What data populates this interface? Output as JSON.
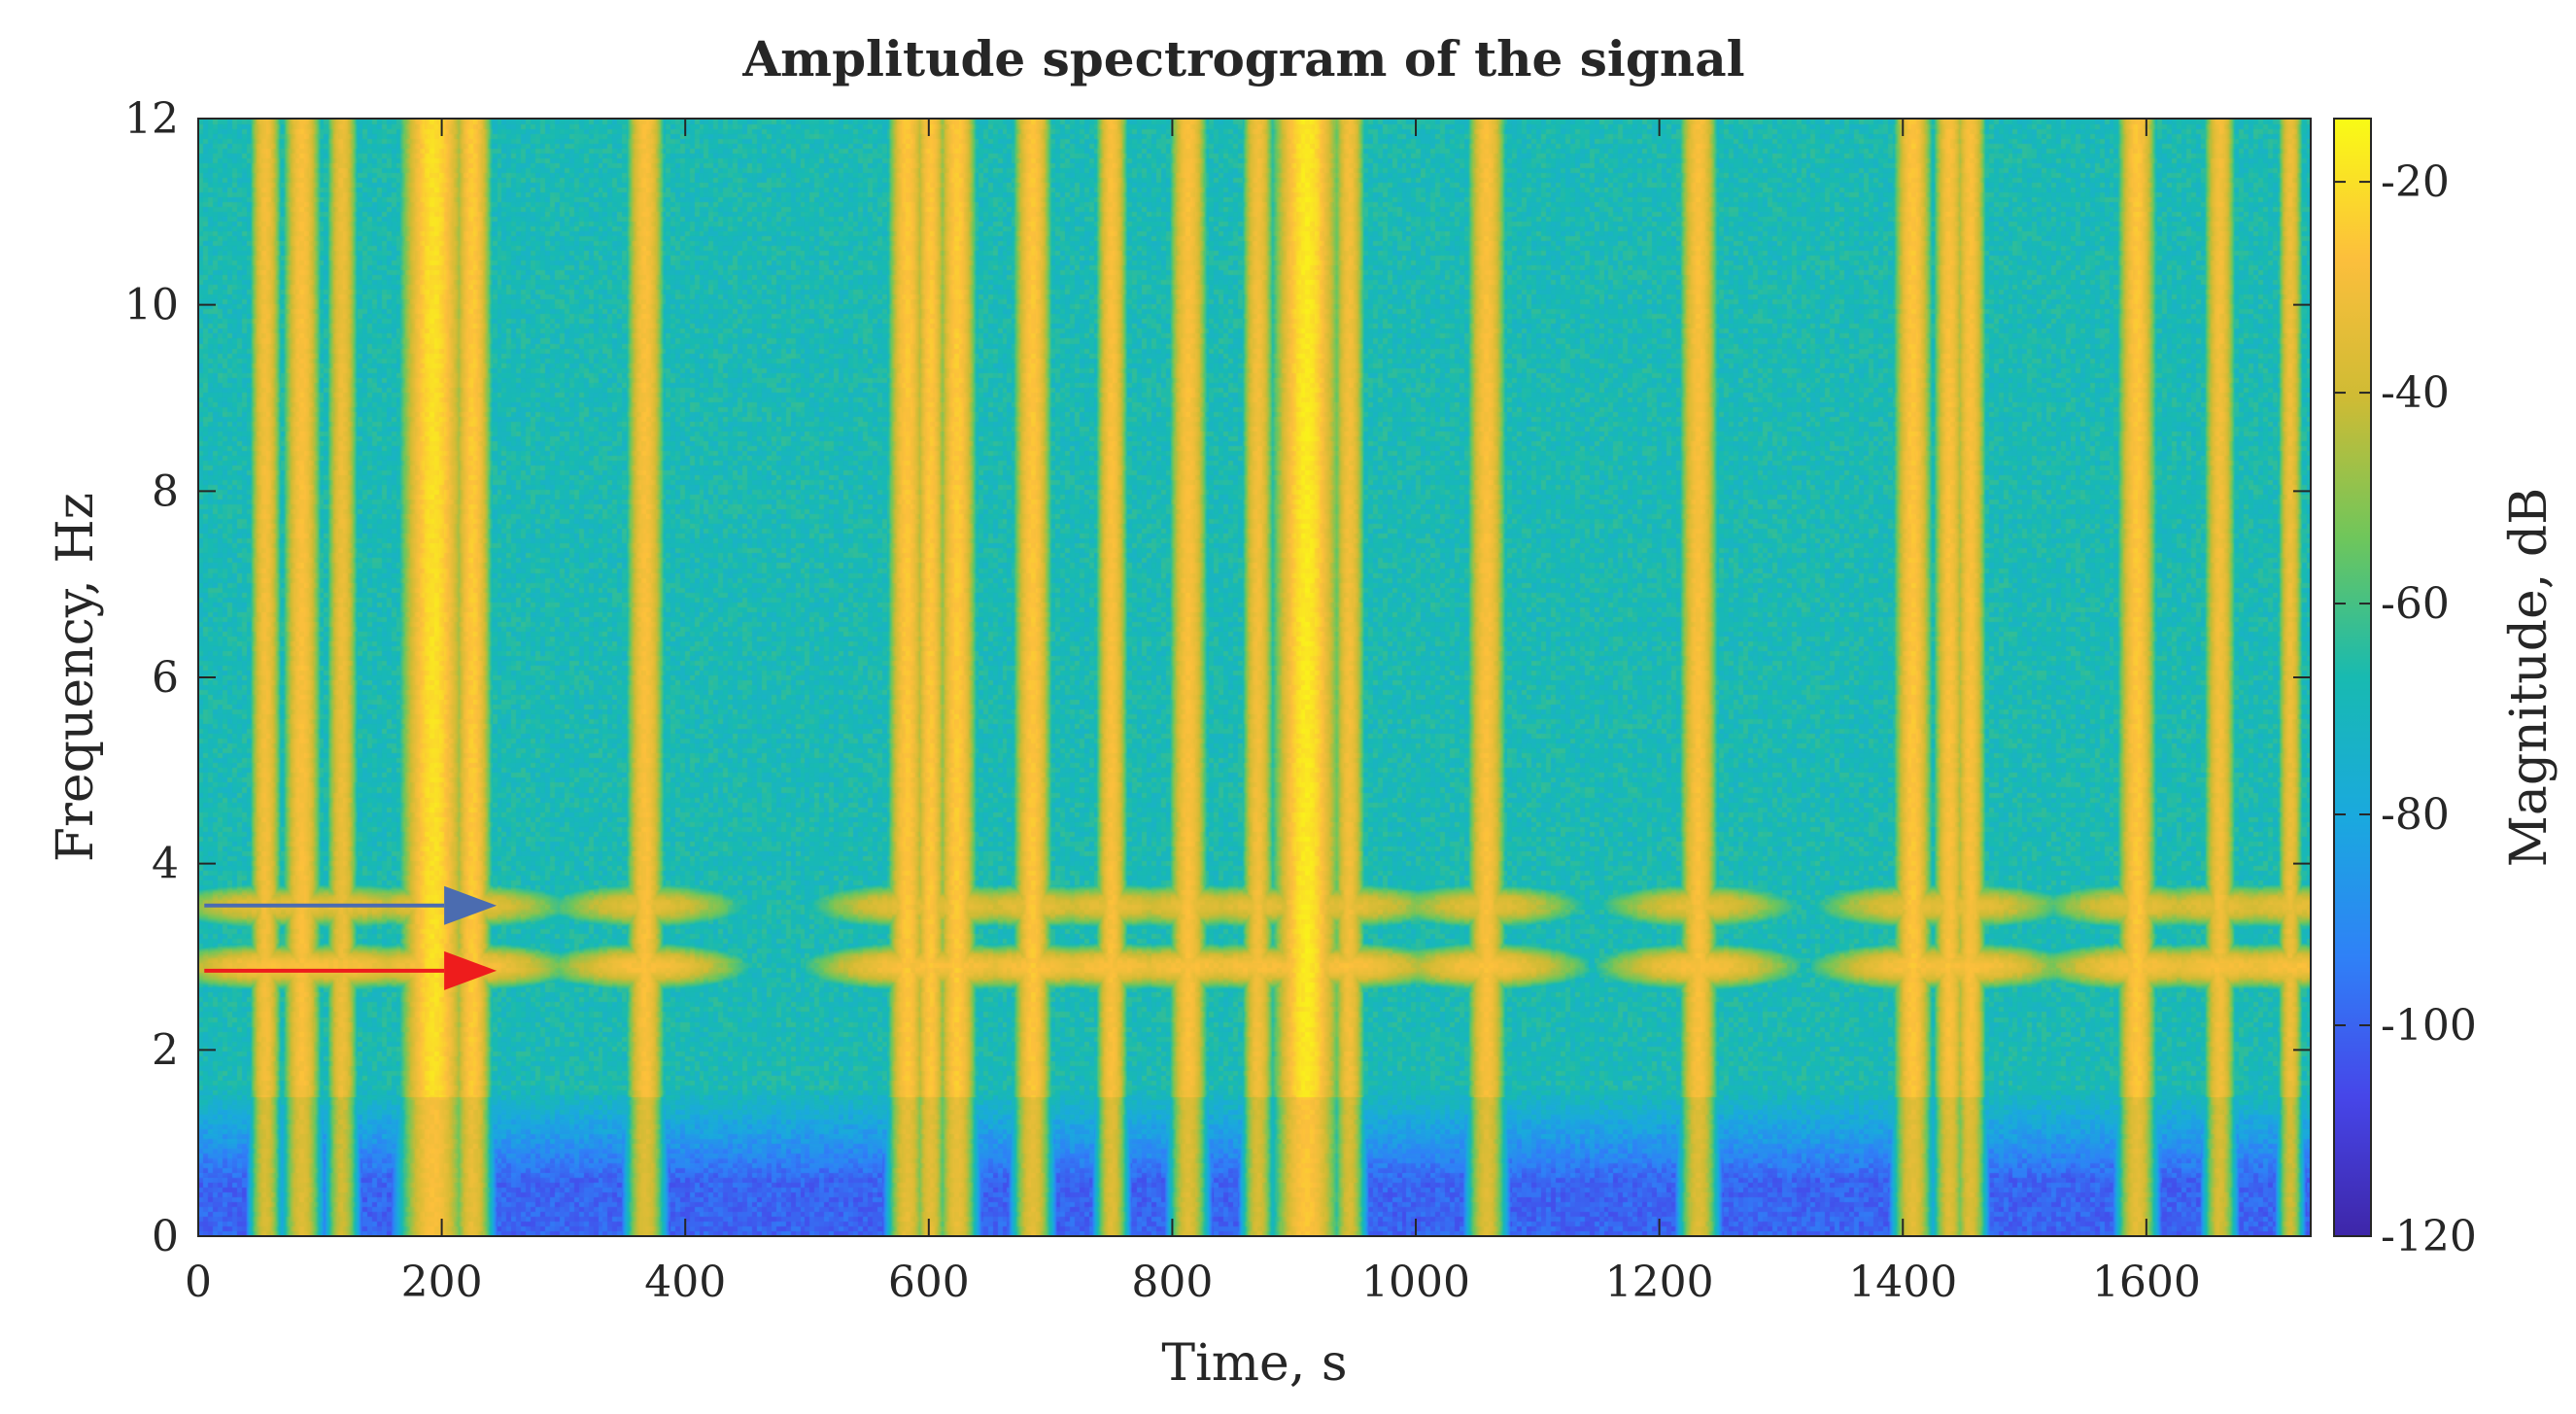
{
  "chart_data": {
    "type": "heatmap",
    "title": "Amplitude spectrogram of the signal",
    "xlabel": "Time, s",
    "ylabel": "Frequency, Hz",
    "xlim": [
      0,
      1735
    ],
    "ylim": [
      0,
      12
    ],
    "x_ticks": [
      "0",
      "200",
      "400",
      "600",
      "800",
      "1000",
      "1200",
      "1400",
      "1600"
    ],
    "y_ticks": [
      "0",
      "2",
      "4",
      "6",
      "8",
      "10",
      "12"
    ],
    "colorbar": {
      "label": "Magnitude, dB",
      "range": [
        -120,
        -14
      ],
      "ticks": [
        "-20",
        "-40",
        "-60",
        "-80",
        "-100",
        "-120"
      ],
      "colormap": [
        "#3e26a8",
        "#4646e9",
        "#2f81f7",
        "#1aa9de",
        "#18bab1",
        "#6fc65b",
        "#cfbb34",
        "#fcbf3c",
        "#f9fb15"
      ]
    },
    "background_level_db": -68,
    "low_frequency_level_db": -100,
    "vertical_bursts": [
      {
        "time": 55,
        "width": 5,
        "peak_db": -30
      },
      {
        "time": 85,
        "width": 6,
        "peak_db": -28
      },
      {
        "time": 118,
        "width": 5,
        "peak_db": -32
      },
      {
        "time": 193,
        "width": 10,
        "peak_db": -20
      },
      {
        "time": 225,
        "width": 6,
        "peak_db": -25
      },
      {
        "time": 367,
        "width": 6,
        "peak_db": -28
      },
      {
        "time": 582,
        "width": 6,
        "peak_db": -26
      },
      {
        "time": 601,
        "width": 5,
        "peak_db": -26
      },
      {
        "time": 623,
        "width": 6,
        "peak_db": -25
      },
      {
        "time": 685,
        "width": 6,
        "peak_db": -26
      },
      {
        "time": 750,
        "width": 5,
        "peak_db": -28
      },
      {
        "time": 813,
        "width": 6,
        "peak_db": -28
      },
      {
        "time": 870,
        "width": 5,
        "peak_db": -30
      },
      {
        "time": 910,
        "width": 10,
        "peak_db": -18
      },
      {
        "time": 945,
        "width": 5,
        "peak_db": -30
      },
      {
        "time": 1058,
        "width": 6,
        "peak_db": -28
      },
      {
        "time": 1232,
        "width": 6,
        "peak_db": -28
      },
      {
        "time": 1408,
        "width": 6,
        "peak_db": -26
      },
      {
        "time": 1438,
        "width": 5,
        "peak_db": -28
      },
      {
        "time": 1455,
        "width": 5,
        "peak_db": -28
      },
      {
        "time": 1592,
        "width": 6,
        "peak_db": -26
      },
      {
        "time": 1660,
        "width": 5,
        "peak_db": -30
      },
      {
        "time": 1718,
        "width": 4,
        "peak_db": -32
      }
    ],
    "harmonic_bands": [
      {
        "frequency": 2.9,
        "peak_db": -28
      },
      {
        "frequency": 3.55,
        "peak_db": -34
      }
    ],
    "annotations": [
      {
        "type": "arrow",
        "color": "#4b6cb0",
        "x_start": 5,
        "x_end": 210,
        "y": 3.55
      },
      {
        "type": "arrow",
        "color": "#ee1c1c",
        "x_start": 5,
        "x_end": 210,
        "y": 2.85
      }
    ]
  }
}
